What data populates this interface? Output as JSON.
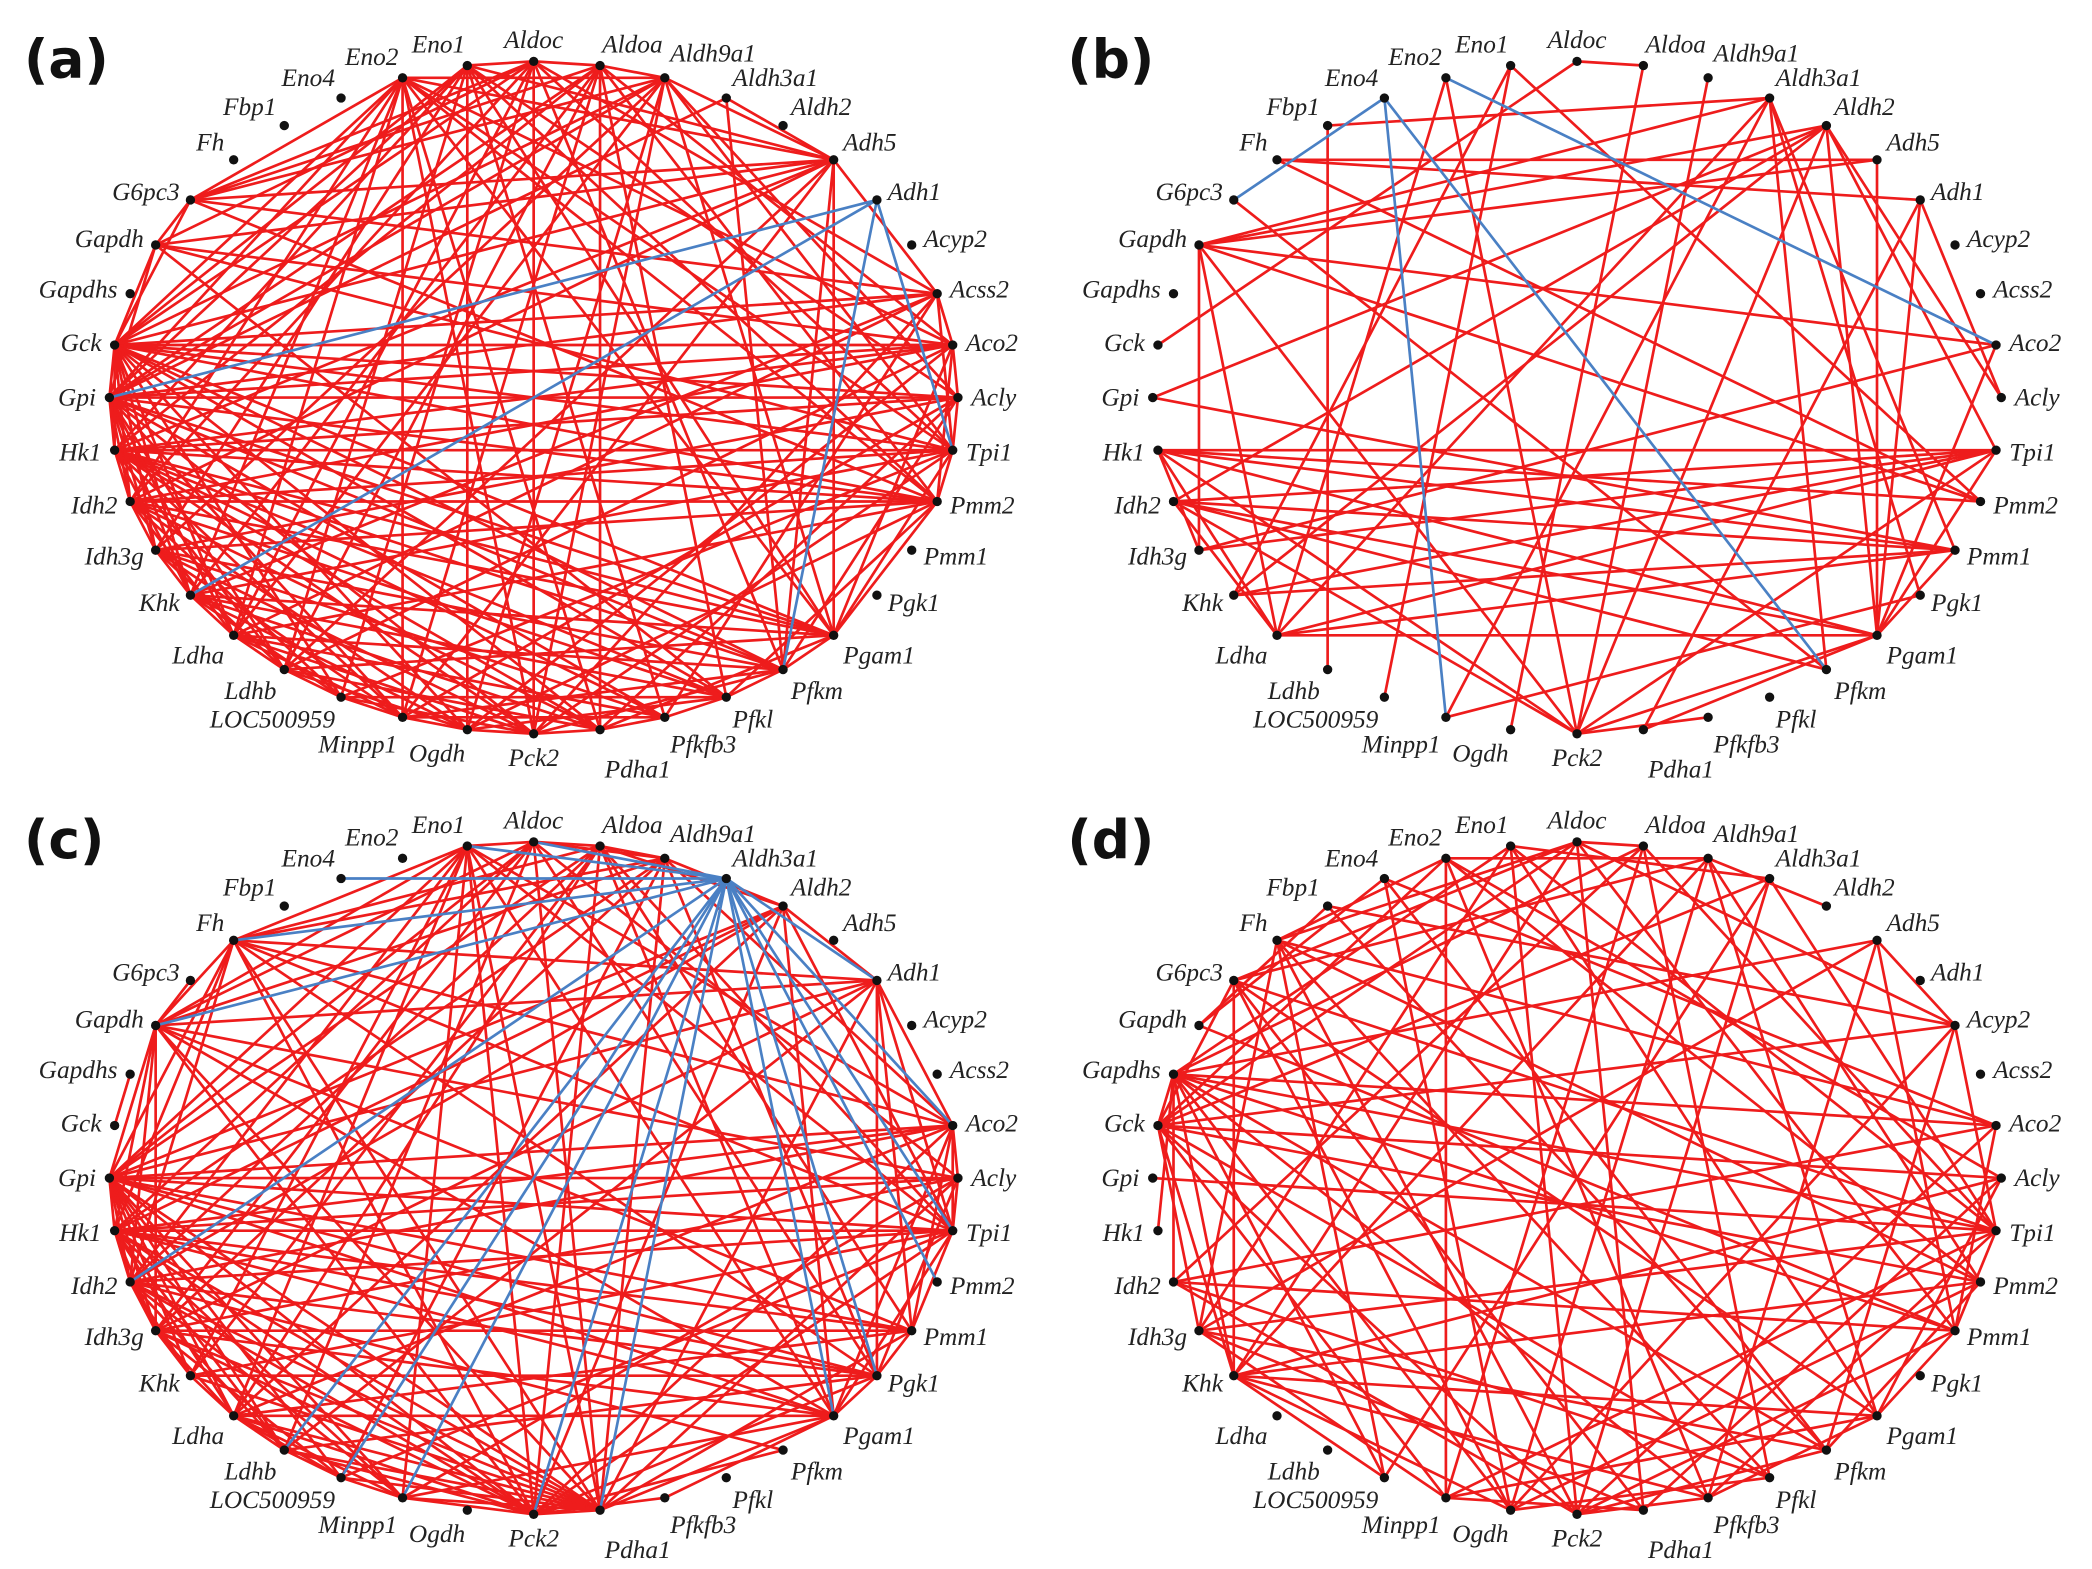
{
  "colors": {
    "positive": "#ee1c1c",
    "negative": "#4a80c4",
    "node": "#111111"
  },
  "nodes": [
    "Aldoc",
    "Aldoa",
    "Aldh9a1",
    "Aldh3a1",
    "Aldh2",
    "Adh5",
    "Adh1",
    "Acyp2",
    "Acss2",
    "Aco2",
    "Acly",
    "Tpi1",
    "Pmm2",
    "Pmm1",
    "Pgk1",
    "Pgam1",
    "Pfkm",
    "Pfkl",
    "Pfkfb3",
    "Pdha1",
    "Pck2",
    "Ogdh",
    "Minpp1",
    "LOC500959",
    "Ldhb",
    "Ldha",
    "Khk",
    "Idh3g",
    "Idh2",
    "Hk1",
    "Gpi",
    "Gck",
    "Gapdhs",
    "Gapdh",
    "G6pc3",
    "Fh",
    "Fbp1",
    "Eno4",
    "Eno2",
    "Eno1"
  ],
  "panels": [
    {
      "label": "(a)",
      "red": {
        "Eno2": [
          "G6pc3",
          "Gck",
          "Gpi",
          "Idh2",
          "Ldha",
          "Pck2",
          "Pdha1",
          "Pgam1",
          "Pmm2",
          "Tpi1",
          "Aco2",
          "Adh5",
          "Aldh9a1",
          "Khk",
          "Minpp1"
        ],
        "Eno1": [
          "Aldoc",
          "Gck",
          "Gpi",
          "Hk1",
          "Ldhb",
          "Ogdh",
          "Pfkfb3",
          "Pgam1",
          "Pmm2",
          "Acly",
          "Adh5",
          "Idh3g"
        ],
        "Aldoc": [
          "Aldoa",
          "G6pc3",
          "Gapdh",
          "Gck",
          "Idh2",
          "LOC500959",
          "Pck2",
          "Pfkm",
          "Tpi1",
          "Acss2",
          "Ldha"
        ],
        "Aldoa": [
          "Aldh9a1",
          "G6pc3",
          "Gpi",
          "Hk1",
          "Khk",
          "Minpp1",
          "Pdha1",
          "Pfkl",
          "Pmm2",
          "Aco2",
          "Ldhb"
        ],
        "Aldh9a1": [
          "Adh5",
          "Gck",
          "Gpi",
          "Idh3g",
          "Ldha",
          "Ogdh",
          "Pck2",
          "Pgam1",
          "Tpi1",
          "Acly",
          "G6pc3"
        ],
        "Aldh3a1": [
          "Adh5",
          "Gpi",
          "Pfkm"
        ],
        "Adh5": [
          "Acss2",
          "G6pc3",
          "Gck",
          "Hk1",
          "Ldhb",
          "Minpp1",
          "Pgam1",
          "Pfkm",
          "Gapdh",
          "Idh2"
        ],
        "Acss2": [
          "Aco2",
          "Gck",
          "Gpi",
          "Khk",
          "Pck2",
          "Pfkfb3",
          "Tpi1",
          "Ldha",
          "G6pc3"
        ],
        "Aco2": [
          "Acly",
          "Gck",
          "Gpi",
          "Idh2",
          "Ldhb",
          "Ogdh",
          "Pgam1",
          "Pmm2",
          "Hk1",
          "Gapdh"
        ],
        "Acly": [
          "Tpi1",
          "Gpi",
          "Hk1",
          "Idh3g",
          "Minpp1",
          "Pdha1",
          "Pfkm",
          "Gck"
        ],
        "Tpi1": [
          "Pmm2",
          "Gck",
          "Idh2",
          "Khk",
          "LOC500959",
          "Pck2",
          "Pgam1",
          "Gapdh",
          "Hk1"
        ],
        "Pmm2": [
          "Pgam1",
          "Gpi",
          "Hk1",
          "Idh3g",
          "Ldha",
          "Ogdh",
          "Pfkl",
          "G6pc3",
          "Gck",
          "Idh2"
        ],
        "Pgam1": [
          "Pfkm",
          "Gck",
          "Idh2",
          "Khk",
          "Ldhb",
          "Pdha1",
          "Gpi",
          "Hk1"
        ],
        "Pfkm": [
          "Pfkl",
          "Gpi",
          "Idh3g",
          "Ldha",
          "Minpp1",
          "Pck2",
          "Hk1",
          "Gck"
        ],
        "Pfkl": [
          "Pfkfb3",
          "Gck",
          "Idh2",
          "Khk",
          "LOC500959",
          "Ogdh",
          "Gapdh",
          "Hk1"
        ],
        "Pfkfb3": [
          "Pdha1",
          "Gpi",
          "Hk1",
          "Ldha",
          "Minpp1",
          "Idh3g"
        ],
        "Pdha1": [
          "Pck2",
          "Gck",
          "Idh2",
          "Khk",
          "Ldhb",
          "Hk1"
        ],
        "Pck2": [
          "Ogdh",
          "Gpi",
          "Hk1",
          "Idh3g",
          "LOC500959",
          "Ldha"
        ],
        "Ogdh": [
          "Minpp1",
          "Gck",
          "Idh2",
          "Khk",
          "Ldhb"
        ],
        "Minpp1": [
          "LOC500959",
          "Gpi",
          "Hk1",
          "Idh3g",
          "Ldha"
        ],
        "LOC500959": [
          "Ldhb",
          "Gck",
          "Idh2",
          "Khk"
        ],
        "Ldhb": [
          "Ldha",
          "Gpi",
          "Hk1",
          "Idh3g"
        ],
        "Ldha": [
          "Khk",
          "Gck",
          "Idh2",
          "Gpi"
        ],
        "Khk": [
          "Idh3g",
          "Gpi",
          "Hk1",
          "Gck"
        ],
        "Idh3g": [
          "Idh2",
          "Gck",
          "Gpi"
        ],
        "Idh2": [
          "Hk1",
          "Gpi",
          "Gck"
        ],
        "Hk1": [
          "Gpi",
          "Gck"
        ],
        "Gpi": [
          "Gck",
          "Gapdh"
        ],
        "Gck": [
          "Gapdh",
          "G6pc3"
        ],
        "Gapdh": [
          "G6pc3"
        ]
      },
      "blue": {
        "Adh1": [
          "Gpi",
          "Khk",
          "Pfkm",
          "Tpi1"
        ]
      }
    },
    {
      "label": "(b)",
      "red": {
        "Eno1": [
          "Pmm2",
          "Khk"
        ],
        "Eno2": [
          "Pck2",
          "Ldha"
        ],
        "Aldoc": [
          "Aldoa",
          "Gck"
        ],
        "Aldoa": [
          "Ogdh"
        ],
        "Aldh9a1": [
          "Pck2"
        ],
        "Aldh3a1": [
          "Fbp1",
          "Gapdh",
          "Pmm1",
          "Pgk1",
          "Ldha",
          "Minpp1",
          "Pfkm"
        ],
        "Aldh2": [
          "Gapdh",
          "Idh2",
          "Pck2",
          "Pgam1",
          "Tpi1",
          "Khk",
          "Gpi",
          "Acly"
        ],
        "Adh5": [
          "Fh",
          "Gapdh",
          "Pgam1"
        ],
        "Adh1": [
          "Fh",
          "Pgam1",
          "Pdha1",
          "Acly"
        ],
        "Aco2": [
          "Gapdh",
          "Idh3g",
          "Pgam1"
        ],
        "Tpi1": [
          "Hk1",
          "Idh2",
          "Idh3g",
          "Khk",
          "Ldha",
          "Pck2",
          "Pgam1"
        ],
        "Pmm2": [
          "Fh",
          "Gapdh",
          "Hk1"
        ],
        "Pmm1": [
          "Idh2",
          "Hk1",
          "Khk",
          "Ldha",
          "Gpi",
          "Pgam1"
        ],
        "Pgk1": [
          "Minpp1"
        ],
        "Pgam1": [
          "Ldha",
          "Hk1",
          "Idh2",
          "Pck2",
          "Pdha1"
        ],
        "Pfkm": [
          "Idh2",
          "G6pc3"
        ],
        "Pfkfb3": [
          "Pck2"
        ],
        "Pck2": [
          "Gapdh",
          "Hk1",
          "Idh2"
        ],
        "Gapdh": [
          "Idh3g",
          "Ldha"
        ],
        "Fbp1": [
          "Ldhb"
        ],
        "LOC500959": [
          "Eno1"
        ],
        "Hk1": [
          "Idh3g",
          "Ldha"
        ],
        "Idh2": [
          "Ldha"
        ]
      },
      "blue": {
        "Eno2": [
          "Aco2"
        ],
        "Eno4": [
          "Pfkm",
          "Minpp1",
          "G6pc3"
        ]
      }
    },
    {
      "label": "(c)",
      "red": {
        "Eno1": [
          "Aldoc",
          "Fh",
          "Gapdh",
          "Gpi",
          "Idh2",
          "Ldha",
          "Pck2",
          "Pdha1",
          "Pgam1",
          "Tpi1",
          "Aco2",
          "Minpp1",
          "Khk"
        ],
        "Aldoc": [
          "Aldoa",
          "Aldh9a1",
          "Gapdh",
          "Hk1",
          "Idh3g",
          "Ldhb",
          "Pdha1",
          "Pgk1",
          "Acly",
          "Gpi"
        ],
        "Aldoa": [
          "Aldh9a1",
          "Aldh2",
          "Fh",
          "Gpi",
          "Idh2",
          "Ldha",
          "Pck2",
          "Pgam1",
          "Pmm1",
          "Tpi1",
          "Khk"
        ],
        "Aldh9a1": [
          "Aldh2",
          "Fh",
          "Gapdh",
          "Hk1",
          "Idh3g",
          "LOC500959",
          "Pdha1",
          "Pgk1",
          "Aco2"
        ],
        "Aldh2": [
          "Adh1",
          "Gpi",
          "Idh2",
          "Ldha",
          "Pck2",
          "Pgam1",
          "Tpi1",
          "Hk1"
        ],
        "Adh1": [
          "Aco2",
          "Fh",
          "Gapdh",
          "Gpi",
          "Idh3g",
          "Ldhb",
          "Pdha1",
          "Pgk1",
          "Tpi1",
          "Pmm1"
        ],
        "Aco2": [
          "Acly",
          "Fh",
          "Gpi",
          "Hk1",
          "Idh2",
          "Ldha",
          "Pck2",
          "Pgam1",
          "Pmm1",
          "Tpi1"
        ],
        "Acly": [
          "Tpi1",
          "Gapdh",
          "Gpi",
          "Idh3g",
          "Minpp1",
          "Pdha1",
          "Pgk1",
          "Hk1"
        ],
        "Tpi1": [
          "Pmm1",
          "Gpi",
          "Hk1",
          "Idh2",
          "Khk",
          "LOC500959",
          "Pck2",
          "Pgam1",
          "Fh"
        ],
        "Pmm1": [
          "Pgk1",
          "Gpi",
          "Hk1",
          "Idh3g",
          "Ldha",
          "Pdha1",
          "Gapdh"
        ],
        "Pgk1": [
          "Pgam1",
          "Gpi",
          "Idh2",
          "Khk",
          "Ldhb",
          "Pck2",
          "Hk1",
          "Fh"
        ],
        "Pgam1": [
          "Pdha1",
          "Gpi",
          "Hk1",
          "Idh3g",
          "Ldha",
          "Minpp1",
          "Gapdh"
        ],
        "Pfkm": [
          "Pck2",
          "Idh2"
        ],
        "Pfkfb3": [
          "Pgam1",
          "Pck2"
        ],
        "Pdha1": [
          "Pck2",
          "Gapdh",
          "Gpi",
          "Hk1",
          "Idh2",
          "Idh3g",
          "Khk",
          "Ldha",
          "Ldhb",
          "LOC500959",
          "Minpp1",
          "Fh"
        ],
        "Pck2": [
          "Minpp1",
          "Gpi",
          "Hk1",
          "Idh2",
          "Idh3g",
          "Ldha",
          "Ldhb",
          "Fh",
          "Gapdh"
        ],
        "Minpp1": [
          "LOC500959",
          "Gpi",
          "Hk1",
          "Idh2",
          "Ldha"
        ],
        "LOC500959": [
          "Ldhb",
          "Gpi",
          "Idh3g",
          "Ldha"
        ],
        "Ldhb": [
          "Ldha",
          "Gpi",
          "Hk1",
          "Idh2"
        ],
        "Ldha": [
          "Khk",
          "Gpi",
          "Idh3g",
          "Hk1"
        ],
        "Khk": [
          "Idh3g",
          "Gpi",
          "Idh2"
        ],
        "Idh3g": [
          "Idh2",
          "Gpi",
          "Hk1",
          "Gapdh"
        ],
        "Idh2": [
          "Hk1",
          "Gpi",
          "Gapdh",
          "Fh"
        ],
        "Hk1": [
          "Gpi",
          "Gapdh",
          "Fh"
        ],
        "Gpi": [
          "Gapdh",
          "Fh"
        ],
        "Gapdhs": [
          "Gck"
        ],
        "Gapdh": [
          "Fh",
          "G6pc3"
        ]
      },
      "blue": {
        "Aldh3a1": [
          "Eno4",
          "Fh",
          "Gapdh",
          "Aldoc",
          "Eno1",
          "Adh1",
          "Aco2",
          "Tpi1",
          "Pmm2",
          "Pgk1",
          "Pgam1",
          "Pdha1",
          "Pck2",
          "Minpp1",
          "LOC500959",
          "Ldhb",
          "Idh2"
        ]
      }
    },
    {
      "label": "(d)",
      "red": {
        "Eno1": [
          "Gapdhs",
          "Idh3g",
          "Pck2",
          "Pgam1",
          "Tpi1",
          "Aldh3a1"
        ],
        "Eno2": [
          "Fh",
          "Gck",
          "Minpp1",
          "Pfkfb3",
          "Pmm2",
          "Acly",
          "Aldh9a1"
        ],
        "Eno4": [
          "Gapdh",
          "Ogdh",
          "Pfkm",
          "Aco2"
        ],
        "Aldoc": [
          "Aldoa",
          "G6pc3",
          "Gck",
          "Khk",
          "Pdha1",
          "Pmm1",
          "Acyp2",
          "Fh"
        ],
        "Aldoa": [
          "Gapdhs",
          "Idh2",
          "Minpp1",
          "Pfkl",
          "Tpi1"
        ],
        "Aldh9a1": [
          "G6pc3",
          "Khk",
          "Ogdh",
          "Pgam1",
          "Pmm2",
          "Aldh2"
        ],
        "Aldh3a1": [
          "Gck",
          "LOC500959",
          "Pck2",
          "Tpi1"
        ],
        "Adh5": [
          "Gapdhs",
          "Idh3g",
          "Pfkfb3",
          "Pmm1",
          "Acyp2"
        ],
        "Acyp2": [
          "Gck",
          "Ogdh",
          "Pfkm",
          "Tpi1",
          "Fbp1"
        ],
        "Aco2": [
          "Gapdhs",
          "Idh2",
          "Pck2",
          "Pmm1",
          "Fh"
        ],
        "Acly": [
          "Gck",
          "Khk",
          "Pdha1",
          "Pgam1"
        ],
        "Tpi1": [
          "Gapdhs",
          "Idh3g",
          "Minpp1",
          "Pfkfb3",
          "Pmm1",
          "G6pc3"
        ],
        "Pmm2": [
          "Gck",
          "Khk",
          "Ogdh",
          "Pfkm",
          "Fh"
        ],
        "Pmm1": [
          "Gapdhs",
          "Idh2",
          "Pck2",
          "Pgam1"
        ],
        "Pgam1": [
          "G6pc3",
          "Khk",
          "Minpp1",
          "Pfkfb3"
        ],
        "Pfkm": [
          "Gapdhs",
          "Idh3g",
          "Pck2",
          "Fbp1"
        ],
        "Pfkl": [
          "Gck",
          "Idh2",
          "Ogdh",
          "Fh"
        ],
        "Pfkfb3": [
          "Gapdhs",
          "Khk",
          "Pck2"
        ],
        "Pdha1": [
          "G6pc3",
          "Idh3g",
          "Minpp1"
        ],
        "Pck2": [
          "Gck",
          "Idh2",
          "Fh"
        ],
        "Ogdh": [
          "Gapdhs",
          "Khk",
          "G6pc3"
        ],
        "Minpp1": [
          "Gck",
          "Idh3g"
        ],
        "LOC500959": [
          "Gapdhs",
          "Khk",
          "Fh"
        ],
        "Khk": [
          "Gapdhs",
          "Gck",
          "G6pc3"
        ],
        "Idh3g": [
          "Gck",
          "Fh"
        ],
        "Idh2": [
          "Gapdhs"
        ],
        "Gck": [
          "G6pc3",
          "Gapdhs"
        ],
        "Hk1": [
          "Gapdhs"
        ],
        "Gpi": [
          "Tpi1"
        ],
        "Gapdh": [
          "Pmm1",
          "Fbp1"
        ]
      },
      "blue": {}
    }
  ]
}
